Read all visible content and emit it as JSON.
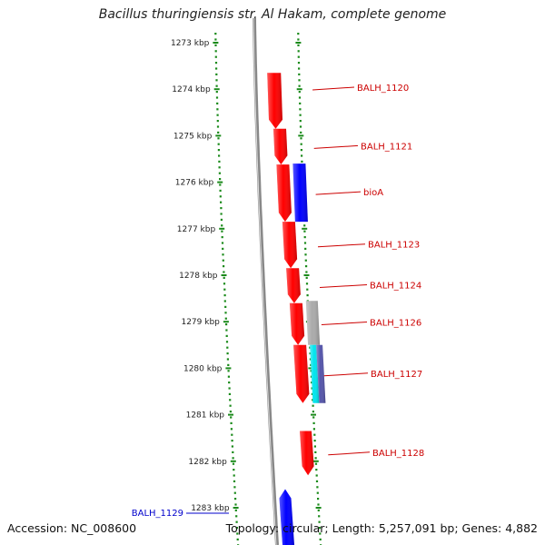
{
  "title": "Bacillus thuringiensis str. Al Hakam, complete genome",
  "footer": {
    "accession": "Accession: NC_008600",
    "topology": "Topology: circular; Length: 5,257,091 bp; Genes: 4,882"
  },
  "ruler": {
    "unit": "kbp",
    "ticks": [
      "1273 kbp",
      "1274 kbp",
      "1275 kbp",
      "1276 kbp",
      "1277 kbp",
      "1278 kbp",
      "1279 kbp",
      "1280 kbp",
      "1281 kbp",
      "1282 kbp",
      "1283 kbp"
    ]
  },
  "genes": [
    {
      "label": "BALH_1120",
      "color": "#ff0000",
      "start_kbp": 1273.65,
      "end_kbp": 1274.85
    },
    {
      "label": "BALH_1121",
      "color": "#ff0000",
      "start_kbp": 1274.85,
      "end_kbp": 1275.62
    },
    {
      "label": "bioA",
      "color": "#0000ff",
      "start_kbp": 1275.6,
      "end_kbp": 1276.85
    },
    {
      "label": "",
      "color": "#ff0000",
      "start_kbp": 1275.62,
      "end_kbp": 1276.85
    },
    {
      "label": "BALH_1123",
      "color": "#ff0000",
      "start_kbp": 1276.85,
      "end_kbp": 1277.85
    },
    {
      "label": "BALH_1124",
      "color": "#ff0000",
      "start_kbp": 1277.85,
      "end_kbp": 1278.6
    },
    {
      "label": "BALH_1126",
      "color": "#aaaaaa",
      "start_kbp": 1278.55,
      "end_kbp": 1279.5
    },
    {
      "label": "",
      "color": "#ff0000",
      "start_kbp": 1278.6,
      "end_kbp": 1279.5
    },
    {
      "label": "BALH_1127",
      "color": "#00e5ee",
      "start_kbp": 1279.5,
      "end_kbp": 1280.75
    },
    {
      "label": "",
      "color": "#5555aa",
      "start_kbp": 1279.5,
      "end_kbp": 1280.75
    },
    {
      "label": "",
      "color": "#ff0000",
      "start_kbp": 1279.5,
      "end_kbp": 1280.75
    },
    {
      "label": "BALH_1128",
      "color": "#ff0000",
      "start_kbp": 1281.35,
      "end_kbp": 1282.3
    },
    {
      "label": "BALH_1129",
      "color": "#0000ff",
      "start_kbp": 1282.6,
      "end_kbp": 1283.8
    }
  ],
  "colors": {
    "backbone": "#888888",
    "ruler": "#1a8a1a",
    "label_line_red": "#cc0000",
    "label_line_blue": "#0000cc"
  }
}
